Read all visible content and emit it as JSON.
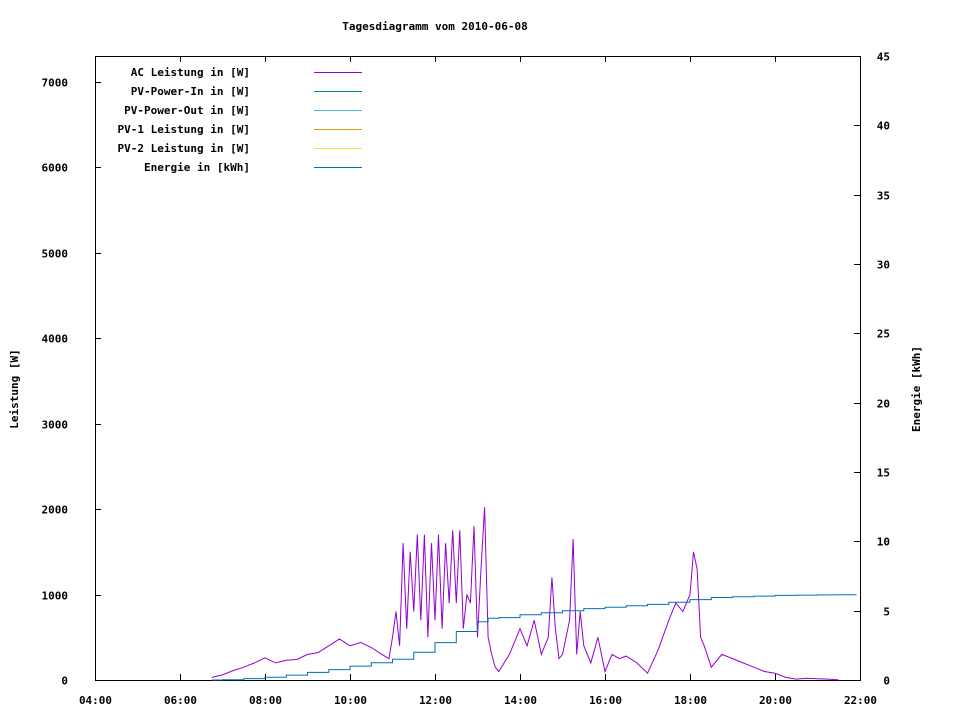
{
  "chart_data": {
    "type": "line",
    "title": "Tagesdiagramm vom 2010-06-08",
    "ylabel": "Leistung [W]",
    "y2label": "Energie [kWh]",
    "x_ticks": [
      "04:00",
      "06:00",
      "08:00",
      "10:00",
      "12:00",
      "14:00",
      "16:00",
      "18:00",
      "20:00",
      "22:00"
    ],
    "xlim": [
      "04:00",
      "22:00"
    ],
    "ylim": [
      0,
      7300
    ],
    "y_ticks": [
      0,
      1000,
      2000,
      3000,
      4000,
      5000,
      6000,
      7000
    ],
    "y2lim": [
      0,
      45
    ],
    "y2_ticks": [
      0,
      5,
      10,
      15,
      20,
      25,
      30,
      35,
      40,
      45
    ],
    "legend_position": "top-left",
    "grid": false,
    "series": [
      {
        "name": "AC Leistung in [W]",
        "color": "#9400d3",
        "axis": "left",
        "x": [
          "06:45",
          "07:00",
          "07:15",
          "07:30",
          "07:45",
          "08:00",
          "08:15",
          "08:30",
          "08:45",
          "09:00",
          "09:15",
          "09:30",
          "09:45",
          "10:00",
          "10:15",
          "10:30",
          "10:45",
          "10:55",
          "11:00",
          "11:05",
          "11:10",
          "11:15",
          "11:20",
          "11:25",
          "11:30",
          "11:35",
          "11:40",
          "11:45",
          "11:50",
          "11:55",
          "12:00",
          "12:05",
          "12:10",
          "12:15",
          "12:20",
          "12:25",
          "12:30",
          "12:35",
          "12:40",
          "12:45",
          "12:50",
          "12:55",
          "13:00",
          "13:05",
          "13:10",
          "13:15",
          "13:20",
          "13:25",
          "13:30",
          "13:45",
          "14:00",
          "14:10",
          "14:20",
          "14:30",
          "14:40",
          "14:45",
          "14:50",
          "14:55",
          "15:00",
          "15:10",
          "15:15",
          "15:20",
          "15:25",
          "15:30",
          "15:40",
          "15:50",
          "16:00",
          "16:05",
          "16:10",
          "16:20",
          "16:30",
          "16:45",
          "17:00",
          "17:15",
          "17:30",
          "17:40",
          "17:50",
          "18:00",
          "18:05",
          "18:10",
          "18:15",
          "18:20",
          "18:30",
          "18:45",
          "19:00",
          "19:15",
          "19:30",
          "19:45",
          "20:00",
          "20:15",
          "20:30",
          "20:45",
          "21:00",
          "21:15",
          "21:25",
          "21:30"
        ],
        "y": [
          30,
          60,
          110,
          150,
          200,
          260,
          200,
          230,
          240,
          300,
          320,
          400,
          480,
          400,
          440,
          380,
          300,
          250,
          500,
          800,
          400,
          1600,
          600,
          1500,
          800,
          1700,
          700,
          1700,
          500,
          1600,
          700,
          1700,
          600,
          1600,
          900,
          1750,
          900,
          1750,
          600,
          1000,
          900,
          1800,
          500,
          1300,
          2020,
          500,
          300,
          150,
          100,
          300,
          600,
          400,
          700,
          300,
          500,
          1200,
          600,
          250,
          300,
          700,
          1650,
          300,
          800,
          400,
          200,
          500,
          100,
          200,
          300,
          250,
          280,
          200,
          80,
          350,
          700,
          900,
          800,
          1000,
          1500,
          1300,
          500,
          400,
          150,
          300,
          250,
          200,
          150,
          100,
          80,
          30,
          10,
          20,
          15,
          10,
          5,
          0
        ]
      },
      {
        "name": "PV-Power-In in [W]",
        "color": "#008b8b",
        "axis": "left",
        "x": [],
        "y": []
      },
      {
        "name": "PV-Power-Out in [W]",
        "color": "#56b4e9",
        "axis": "left",
        "x": [],
        "y": []
      },
      {
        "name": "PV-1 Leistung in [W]",
        "color": "#e69f00",
        "axis": "left",
        "x": [],
        "y": []
      },
      {
        "name": "PV-2 Leistung in [W]",
        "color": "#f0e442",
        "axis": "left",
        "x": [],
        "y": []
      },
      {
        "name": "Energie in [kWh]",
        "color": "#0072b2",
        "axis": "right",
        "x": [
          "06:45",
          "07:00",
          "07:30",
          "08:00",
          "08:30",
          "09:00",
          "09:30",
          "10:00",
          "10:30",
          "11:00",
          "11:30",
          "12:00",
          "12:30",
          "13:00",
          "13:15",
          "13:30",
          "14:00",
          "14:30",
          "15:00",
          "15:30",
          "16:00",
          "16:30",
          "17:00",
          "17:30",
          "18:00",
          "18:30",
          "19:00",
          "19:30",
          "20:00",
          "20:30",
          "21:00",
          "21:30",
          "21:55"
        ],
        "y": [
          0.0,
          0.02,
          0.1,
          0.2,
          0.35,
          0.55,
          0.75,
          1.0,
          1.25,
          1.5,
          2.0,
          2.7,
          3.5,
          4.2,
          4.45,
          4.5,
          4.7,
          4.85,
          5.0,
          5.15,
          5.25,
          5.35,
          5.45,
          5.6,
          5.8,
          5.95,
          6.0,
          6.05,
          6.1,
          6.12,
          6.14,
          6.15,
          6.15
        ]
      }
    ]
  }
}
